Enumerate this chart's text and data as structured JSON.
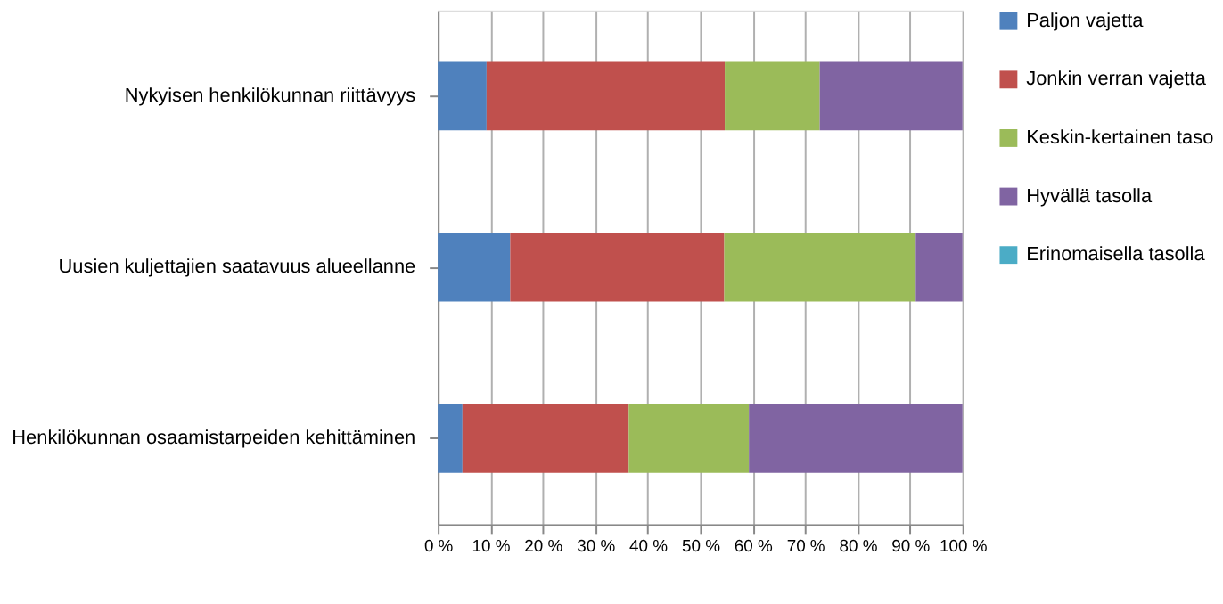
{
  "chart_data": {
    "type": "bar",
    "orientation": "horizontal",
    "stacked": true,
    "categories": [
      "Nykyisen henkilökunnan riittävyys",
      "Uusien kuljettajien saatavuus alueellanne",
      "Henkilökunnan osaamistarpeiden kehittäminen"
    ],
    "series": [
      {
        "name": "Paljon vajetta",
        "color": "#4f81bd",
        "values": [
          9.3,
          13.8,
          4.7
        ]
      },
      {
        "name": "Jonkin verran vajetta",
        "color": "#c0504d",
        "values": [
          45.4,
          40.8,
          31.7
        ]
      },
      {
        "name": "Keskin-kertainen taso",
        "color": "#9bbb59",
        "values": [
          18.1,
          36.5,
          22.9
        ]
      },
      {
        "name": "Hyvällä tasolla",
        "color": "#8064a2",
        "values": [
          27.2,
          8.9,
          40.7
        ]
      },
      {
        "name": "Erinomaisella tasolla",
        "color": "#4bacc6",
        "values": [
          0,
          0,
          0
        ]
      }
    ],
    "xlim": [
      0,
      100
    ],
    "xticks": [
      {
        "value": 0,
        "label": "0 %"
      },
      {
        "value": 10,
        "label": "10 %"
      },
      {
        "value": 20,
        "label": "20 %"
      },
      {
        "value": 30,
        "label": "30 %"
      },
      {
        "value": 40,
        "label": "40 %"
      },
      {
        "value": 50,
        "label": "50 %"
      },
      {
        "value": 60,
        "label": "60 %"
      },
      {
        "value": 70,
        "label": "70 %"
      },
      {
        "value": 80,
        "label": "80 %"
      },
      {
        "value": 90,
        "label": "90 %"
      },
      {
        "value": 100,
        "label": "100 %"
      }
    ],
    "grid": "x",
    "legend": "right"
  }
}
